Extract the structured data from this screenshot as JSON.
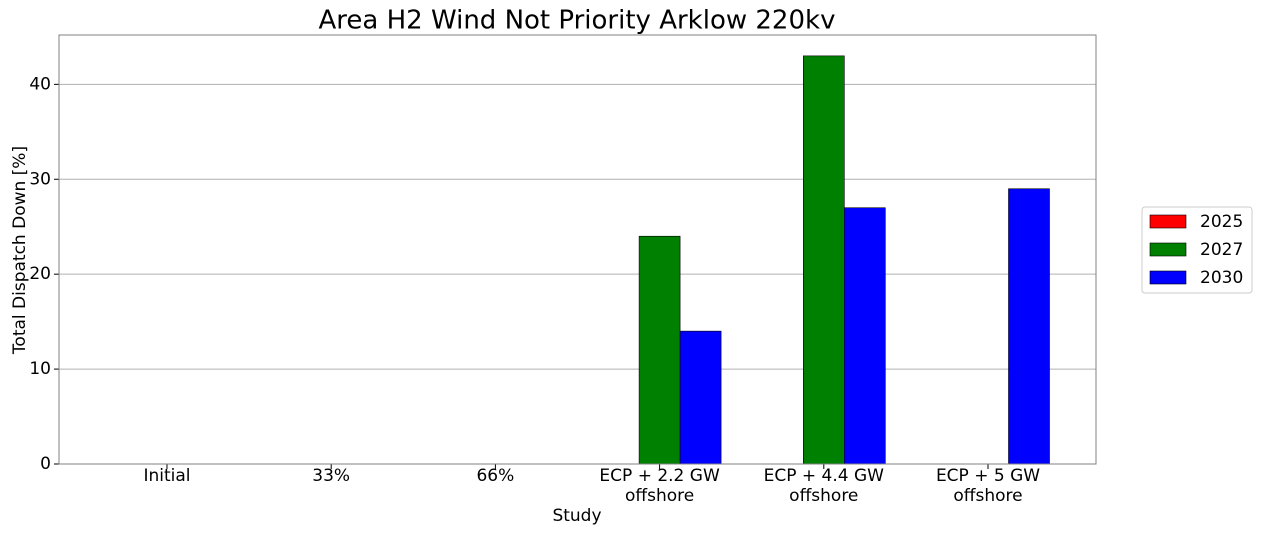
{
  "chart_data": {
    "type": "bar",
    "title": "Area H2 Wind Not Priority Arklow 220kv",
    "xlabel": "Study",
    "ylabel": "Total Dispatch Down [%]",
    "categories": [
      "Initial",
      "33%",
      "66%",
      "ECP + 2.2 GW\noffshore",
      "ECP + 4.4 GW\noffshore",
      "ECP + 5 GW\noffshore"
    ],
    "series": [
      {
        "name": "2025",
        "color": "#ff0000",
        "values": [
          0,
          0,
          0,
          0,
          0,
          0
        ]
      },
      {
        "name": "2027",
        "color": "#008000",
        "values": [
          0,
          0,
          0,
          24,
          43,
          0
        ]
      },
      {
        "name": "2030",
        "color": "#0000ff",
        "values": [
          0,
          0,
          0,
          14,
          27,
          29
        ]
      }
    ],
    "ylim": [
      0,
      45.2
    ],
    "yticks": [
      0,
      10,
      20,
      30,
      40
    ],
    "grid": true,
    "legend": "right"
  }
}
